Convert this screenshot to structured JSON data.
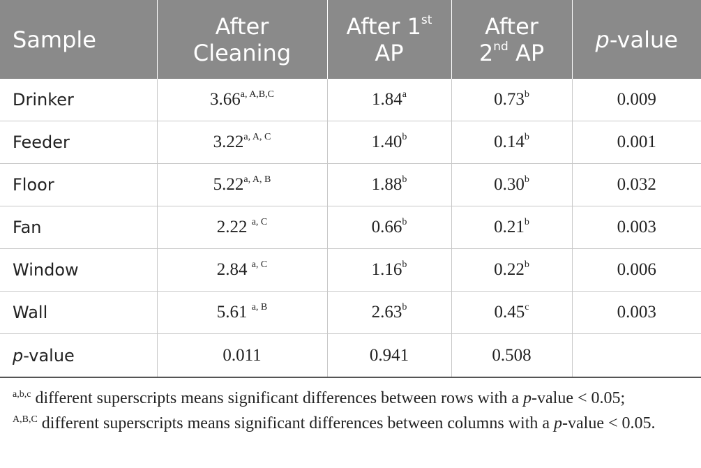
{
  "table": {
    "headers": [
      {
        "parts": [
          "Sample"
        ],
        "sup": ""
      },
      {
        "parts": [
          "After",
          "Cleaning"
        ],
        "sup": ""
      },
      {
        "line1": "After 1",
        "sup": "st",
        "line2": "AP"
      },
      {
        "line1": "After",
        "line2pre": "2",
        "sup": "nd",
        "line2post": " AP"
      },
      {
        "italic": "p",
        "rest": "-value"
      }
    ],
    "rows": [
      {
        "sample": "Drinker",
        "c1": "3.66",
        "c1sup": "a, A,B,C",
        "c2": "1.84",
        "c2sup": "a",
        "c3": "0.73",
        "c3sup": "b",
        "p": "0.009"
      },
      {
        "sample": "Feeder",
        "c1": "3.22",
        "c1sup": "a, A, C",
        "c2": "1.40",
        "c2sup": "b",
        "c3": "0.14",
        "c3sup": "b",
        "p": "0.001"
      },
      {
        "sample": "Floor",
        "c1": "5.22",
        "c1sup": "a, A, B",
        "c2": "1.88",
        "c2sup": "b",
        "c3": "0.30",
        "c3sup": "b",
        "p": "0.032"
      },
      {
        "sample": "Fan",
        "c1": "2.22 ",
        "c1sup": "a, C",
        "c2": "0.66",
        "c2sup": "b",
        "c3": "0.21",
        "c3sup": "b",
        "p": "0.003"
      },
      {
        "sample": "Window",
        "c1": "2.84 ",
        "c1sup": "a, C",
        "c2": "1.16",
        "c2sup": "b",
        "c3": "0.22",
        "c3sup": "b",
        "p": "0.006"
      },
      {
        "sample": "Wall",
        "c1": "5.61 ",
        "c1sup": "a, B",
        "c2": "2.63",
        "c2sup": "b",
        "c3": "0.45",
        "c3sup": "c",
        "p": "0.003"
      }
    ],
    "pvalue_row": {
      "italic": "p",
      "rest": "-value",
      "c1": "0.011",
      "c2": "0.941",
      "c3": "0.508"
    }
  },
  "footnote": {
    "sup1": "a,b,c",
    "text1a": " different superscripts means significant differences between rows with a ",
    "p1": "p",
    "text1b": "-value < 0.05;",
    "sup2": "A,B,C",
    "text2a": " different superscripts means significant differences between columns with a ",
    "p2": "p",
    "text2b": "-value < 0.05."
  }
}
